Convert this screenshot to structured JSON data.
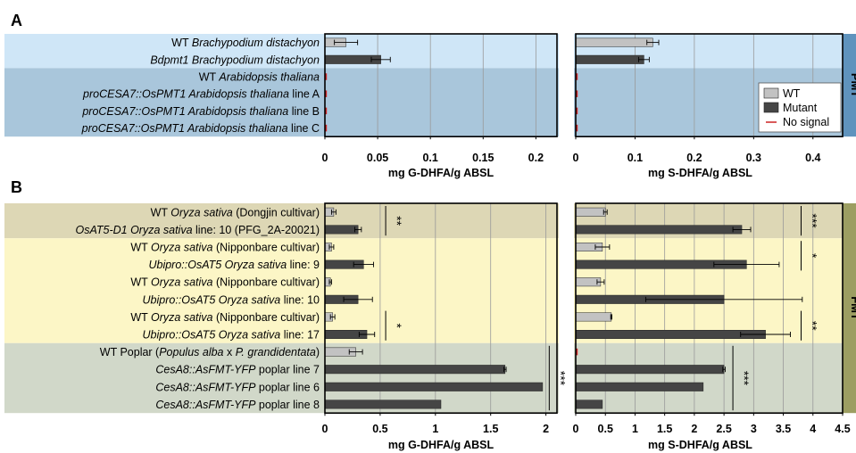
{
  "chart_data": [
    {
      "panel": "A",
      "type": "bar",
      "orientation": "horizontal",
      "rows": [
        {
          "parts": [
            {
              "t": "WT ",
              "i": false
            },
            {
              "t": "Brachypodium distachyon",
              "i": true
            }
          ],
          "kind": "WT"
        },
        {
          "parts": [
            {
              "t": "Bdpmt1 Brachypodium distachyon",
              "i": true
            }
          ],
          "kind": "Mutant"
        },
        {
          "parts": [
            {
              "t": "WT ",
              "i": false
            },
            {
              "t": "Arabidopsis thaliana",
              "i": true
            }
          ],
          "kind": "none"
        },
        {
          "parts": [
            {
              "t": "proCESA7::OsPMT1 Arabidopsis thaliana",
              "i": true
            },
            {
              "t": " line A",
              "i": false
            }
          ],
          "kind": "none"
        },
        {
          "parts": [
            {
              "t": "proCESA7::OsPMT1 Arabidopsis thaliana",
              "i": true
            },
            {
              "t": " line B",
              "i": false
            }
          ],
          "kind": "none"
        },
        {
          "parts": [
            {
              "t": "proCESA7::OsPMT1 Arabidopsis thaliana",
              "i": true
            },
            {
              "t": " line C",
              "i": false
            }
          ],
          "kind": "none"
        }
      ],
      "groups": [
        {
          "rows": [
            0,
            1
          ],
          "color": "#cfe6f7"
        },
        {
          "rows": [
            2,
            3,
            4,
            5
          ],
          "color": "#a9c6db"
        }
      ],
      "side_tab": {
        "text": "PMT",
        "color": "#5f93bd"
      },
      "legend": {
        "position": "bottom-right of right plot",
        "entries": [
          {
            "label": "WT",
            "kind": "WT"
          },
          {
            "label": "Mutant",
            "kind": "Mutant"
          },
          {
            "label": "No signal",
            "kind": "none"
          }
        ]
      },
      "plots": [
        {
          "xlabel": "mg G-DHFA/g ABSL",
          "xlim": [
            0,
            0.22
          ],
          "ticks": [
            0,
            0.05,
            0.1,
            0.15,
            0.2
          ],
          "tick_labels": [
            "0",
            "0.05",
            "0.1",
            "0.15",
            "0.2"
          ],
          "values": [
            0.02,
            0.053,
            0,
            0,
            0,
            0
          ],
          "errors": [
            0.011,
            0.009,
            0,
            0,
            0,
            0
          ],
          "sig": []
        },
        {
          "xlabel": "mg S-DHFA/g ABSL",
          "xlim": [
            0,
            0.45
          ],
          "ticks": [
            0,
            0.1,
            0.2,
            0.3,
            0.4
          ],
          "tick_labels": [
            "0",
            "0.1",
            "0.2",
            "0.3",
            "0.4"
          ],
          "values": [
            0.13,
            0.115,
            0,
            0,
            0,
            0
          ],
          "errors": [
            0.01,
            0.009,
            0,
            0,
            0,
            0
          ],
          "sig": []
        }
      ]
    },
    {
      "panel": "B",
      "type": "bar",
      "orientation": "horizontal",
      "rows": [
        {
          "parts": [
            {
              "t": "WT ",
              "i": false
            },
            {
              "t": "Oryza sativa",
              "i": true
            },
            {
              "t": " (Dongjin cultivar)",
              "i": false
            }
          ],
          "kind": "WT"
        },
        {
          "parts": [
            {
              "t": "OsAT5-D1 Oryza sativa",
              "i": true
            },
            {
              "t": " line: 10 (PFG_2A-20021)",
              "i": false
            }
          ],
          "kind": "Mutant"
        },
        {
          "parts": [
            {
              "t": "WT ",
              "i": false
            },
            {
              "t": "Oryza sativa",
              "i": true
            },
            {
              "t": " (Nipponbare cultivar)",
              "i": false
            }
          ],
          "kind": "WT"
        },
        {
          "parts": [
            {
              "t": "Ubipro::OsAT5 Oryza sativa",
              "i": true
            },
            {
              "t": " line: 9",
              "i": false
            }
          ],
          "kind": "Mutant"
        },
        {
          "parts": [
            {
              "t": "WT ",
              "i": false
            },
            {
              "t": "Oryza sativa",
              "i": true
            },
            {
              "t": " (Nipponbare cultivar)",
              "i": false
            }
          ],
          "kind": "WT"
        },
        {
          "parts": [
            {
              "t": "Ubipro::OsAT5 Oryza sativa",
              "i": true
            },
            {
              "t": " line: 10",
              "i": false
            }
          ],
          "kind": "Mutant"
        },
        {
          "parts": [
            {
              "t": "WT ",
              "i": false
            },
            {
              "t": "Oryza sativa",
              "i": true
            },
            {
              "t": " (Nipponbare cultivar)",
              "i": false
            }
          ],
          "kind": "WT"
        },
        {
          "parts": [
            {
              "t": "Ubipro::OsAT5 Oryza sativa",
              "i": true
            },
            {
              "t": " line: 17",
              "i": false
            }
          ],
          "kind": "Mutant"
        },
        {
          "parts": [
            {
              "t": "WT Poplar (",
              "i": false
            },
            {
              "t": "Populus alba",
              "i": true
            },
            {
              "t": " x ",
              "i": false
            },
            {
              "t": "P. grandidentata",
              "i": true
            },
            {
              "t": ")",
              "i": false
            }
          ],
          "kind": "WT"
        },
        {
          "parts": [
            {
              "t": "CesA8::AsFMT-YFP",
              "i": true
            },
            {
              "t": " poplar line 7",
              "i": false
            }
          ],
          "kind": "Mutant"
        },
        {
          "parts": [
            {
              "t": "CesA8::AsFMT-YFP",
              "i": true
            },
            {
              "t": " poplar line 6",
              "i": false
            }
          ],
          "kind": "Mutant"
        },
        {
          "parts": [
            {
              "t": "CesA8::AsFMT-YFP",
              "i": true
            },
            {
              "t": " poplar line 8",
              "i": false
            }
          ],
          "kind": "Mutant"
        }
      ],
      "groups": [
        {
          "rows": [
            0,
            1
          ],
          "color": "#ddd7b5"
        },
        {
          "rows": [
            2,
            3,
            4,
            5,
            6,
            7
          ],
          "color": "#fcf6c6"
        },
        {
          "rows": [
            8,
            9,
            10,
            11
          ],
          "color": "#d1d8c9"
        }
      ],
      "side_tab": {
        "text": "FMT",
        "color": "#9c9e62"
      },
      "plots": [
        {
          "xlabel": "mg G-DHFA/g ABSL",
          "xlim": [
            0,
            2.1
          ],
          "ticks": [
            0,
            0.5,
            1,
            1.5,
            2
          ],
          "tick_labels": [
            "0",
            "0.5",
            "1",
            "1.5",
            "2"
          ],
          "values": [
            0.08,
            0.3,
            0.06,
            0.35,
            0.05,
            0.3,
            0.07,
            0.38,
            0.28,
            1.63,
            1.97,
            1.05
          ],
          "errors": [
            0.02,
            0.03,
            0.02,
            0.09,
            0.01,
            0.13,
            0.02,
            0.07,
            0.06,
            0.01,
            0,
            0
          ],
          "sig": [
            {
              "rows": [
                0,
                1
              ],
              "label": "**",
              "x": 0.55
            },
            {
              "rows": [
                6,
                7
              ],
              "label": "*",
              "x": 0.55
            },
            {
              "rows": [
                8,
                11
              ],
              "label": "***",
              "x": 2.03
            }
          ]
        },
        {
          "xlabel": "mg S-DHFA/g ABSL",
          "xlim": [
            0,
            4.5
          ],
          "ticks": [
            0,
            0.5,
            1,
            1.5,
            2,
            2.5,
            3,
            3.5,
            4,
            4.5
          ],
          "tick_labels": [
            "0",
            "0.5",
            "1",
            "1.5",
            "2",
            "2.5",
            "3",
            "3.5",
            "4",
            "4.5"
          ],
          "values": [
            0.5,
            2.8,
            0.45,
            2.88,
            0.42,
            2.5,
            0.6,
            3.2,
            0.02,
            2.5,
            2.15,
            0.45
          ],
          "errors": [
            0.03,
            0.15,
            0.12,
            0.55,
            0.06,
            1.32,
            0.01,
            0.42,
            0,
            0.02,
            0,
            0
          ],
          "sig": [
            {
              "rows": [
                0,
                1
              ],
              "label": "***",
              "x": 3.8
            },
            {
              "rows": [
                2,
                3
              ],
              "label": "*",
              "x": 3.8
            },
            {
              "rows": [
                6,
                7
              ],
              "label": "**",
              "x": 3.8
            },
            {
              "rows": [
                8,
                11
              ],
              "label": "***",
              "x": 2.65
            }
          ]
        }
      ]
    }
  ],
  "colors": {
    "wt_bar": "#c2c2c2",
    "mutant_bar": "#454545",
    "no_signal": "#cc2222",
    "grid": "#9a9a9a"
  }
}
